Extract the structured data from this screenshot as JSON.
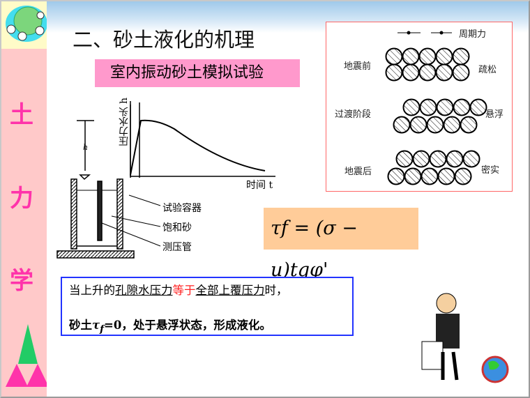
{
  "sidebar": {
    "chars": [
      "土",
      "力",
      "学"
    ]
  },
  "title": "二、砂土液化的机理",
  "subtitle": "室内振动砂土模拟试验",
  "apparatus": {
    "y_axis_label": "压力水头 h",
    "x_axis_label": "时间 t",
    "h_label": "h",
    "callouts": [
      "试验容器",
      "饱和砂",
      "测压管"
    ]
  },
  "particle_diagram": {
    "force_label": "周期力",
    "rows": [
      {
        "stage": "地震前",
        "state": "疏松"
      },
      {
        "stage": "过渡阶段",
        "state": "悬浮"
      },
      {
        "stage": "地震后",
        "state": "密实"
      }
    ]
  },
  "formula": "τf = (σ − u)tgφ'",
  "note": {
    "line1": [
      "当上升的",
      "孔隙水压力",
      "等于",
      "全部上覆压力",
      "时，"
    ],
    "line2": [
      "砂土",
      "τ",
      "f",
      "=0，处于悬浮状态，形成液化。"
    ]
  },
  "colors": {
    "sidebar": "#ffc9c9",
    "accent_text": "#ff33aa",
    "subtitle_bg": "#ff99cc",
    "formula_bg": "#ffcc99",
    "note_border": "#2233ff",
    "highlight": "#ff2222"
  }
}
